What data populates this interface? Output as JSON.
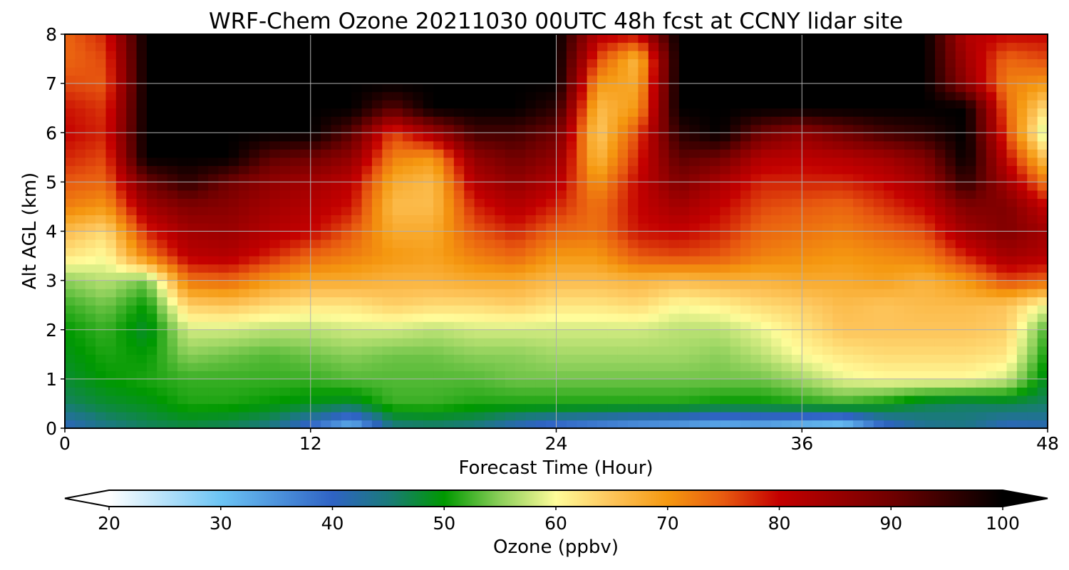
{
  "chart_data": {
    "type": "heatmap",
    "title": "WRF-Chem Ozone  20211030 00UTC 48h fcst at CCNY lidar site",
    "xlabel": "Forecast Time (Hour)",
    "ylabel": "Alt AGL (km)",
    "xlim": [
      0,
      48
    ],
    "ylim": [
      0,
      8
    ],
    "x_ticks": [
      "0",
      "12",
      "24",
      "36",
      "48"
    ],
    "y_ticks": [
      "0",
      "1",
      "2",
      "3",
      "4",
      "5",
      "6",
      "7",
      "8"
    ],
    "grid": true,
    "colorbar": {
      "label": "Ozone  (ppbv)",
      "range": [
        20,
        100
      ],
      "ticks": [
        "20",
        "30",
        "40",
        "50",
        "60",
        "70",
        "80",
        "90",
        "100"
      ],
      "extend": "both",
      "stops": [
        {
          "v": 20,
          "color": "#ffffff"
        },
        {
          "v": 30,
          "color": "#6cc4f4"
        },
        {
          "v": 40,
          "color": "#2f63c4"
        },
        {
          "v": 45,
          "color": "#1a7a7a"
        },
        {
          "v": 50,
          "color": "#009900"
        },
        {
          "v": 55,
          "color": "#8ccf5a"
        },
        {
          "v": 60,
          "color": "#fffc9a"
        },
        {
          "v": 65,
          "color": "#fdc45a"
        },
        {
          "v": 70,
          "color": "#f59810"
        },
        {
          "v": 75,
          "color": "#e85a10"
        },
        {
          "v": 80,
          "color": "#c40000"
        },
        {
          "v": 90,
          "color": "#700000"
        },
        {
          "v": 100,
          "color": "#000000"
        }
      ]
    },
    "field": {
      "x_hours": [
        0,
        2,
        4,
        6,
        8,
        10,
        12,
        14,
        16,
        18,
        20,
        22,
        24,
        26,
        28,
        30,
        32,
        34,
        36,
        38,
        40,
        42,
        44,
        46,
        48
      ],
      "z_km": [
        0,
        0.5,
        1,
        1.5,
        2,
        2.5,
        3,
        3.5,
        4,
        4.5,
        5,
        5.5,
        6,
        6.5,
        7,
        7.5,
        8
      ],
      "ozone_ppbv_rows": [
        [
          40,
          44,
          46,
          47,
          46,
          44,
          38,
          30,
          44,
          45,
          44,
          40,
          37,
          35,
          33,
          32,
          30,
          31,
          29,
          27,
          38,
          43,
          44,
          40,
          41
        ],
        [
          46,
          48,
          49,
          51,
          51,
          50,
          49,
          48,
          52,
          52,
          51,
          51,
          51,
          51,
          51,
          51,
          50,
          50,
          51,
          52,
          50,
          47,
          46,
          47,
          46
        ],
        [
          48,
          50,
          51,
          52,
          52,
          52,
          52,
          53,
          53,
          53,
          53,
          54,
          54,
          54,
          54,
          54,
          54,
          54,
          56,
          59,
          60,
          60,
          60,
          58,
          48
        ],
        [
          49,
          51,
          50,
          55,
          54,
          53,
          54,
          55,
          54,
          54,
          55,
          55,
          56,
          56,
          56,
          56,
          55,
          57,
          60,
          62,
          63,
          63,
          63,
          62,
          50
        ],
        [
          50,
          52,
          48,
          58,
          58,
          57,
          57,
          58,
          58,
          57,
          58,
          58,
          58,
          58,
          58,
          57,
          57,
          59,
          62,
          65,
          65,
          65,
          65,
          64,
          52
        ],
        [
          52,
          54,
          50,
          64,
          65,
          63,
          62,
          62,
          64,
          63,
          63,
          64,
          62,
          62,
          63,
          60,
          61,
          63,
          64,
          66,
          65,
          66,
          66,
          65,
          59
        ],
        [
          55,
          57,
          54,
          73,
          74,
          70,
          68,
          68,
          67,
          67,
          68,
          68,
          66,
          66,
          67,
          66,
          67,
          67,
          68,
          68,
          69,
          67,
          70,
          76,
          74
        ],
        [
          62,
          60,
          72,
          81,
          82,
          78,
          74,
          72,
          70,
          69,
          72,
          74,
          70,
          70,
          75,
          76,
          75,
          72,
          71,
          70,
          71,
          72,
          78,
          84,
          82
        ],
        [
          66,
          63,
          78,
          84,
          85,
          82,
          80,
          75,
          68,
          68,
          75,
          78,
          74,
          73,
          79,
          80,
          78,
          74,
          73,
          72,
          74,
          76,
          84,
          88,
          84
        ],
        [
          72,
          70,
          84,
          88,
          87,
          84,
          82,
          79,
          66,
          66,
          78,
          82,
          78,
          73,
          80,
          84,
          80,
          76,
          75,
          74,
          77,
          80,
          88,
          88,
          80
        ],
        [
          75,
          74,
          90,
          96,
          90,
          86,
          84,
          81,
          68,
          66,
          82,
          86,
          82,
          70,
          80,
          88,
          83,
          78,
          78,
          78,
          80,
          84,
          96,
          84,
          72
        ],
        [
          78,
          76,
          100,
          100,
          100,
          92,
          90,
          86,
          72,
          70,
          86,
          90,
          86,
          66,
          78,
          92,
          90,
          82,
          81,
          82,
          84,
          88,
          100,
          80,
          64
        ],
        [
          80,
          78,
          100,
          100,
          100,
          100,
          100,
          92,
          76,
          84,
          94,
          94,
          90,
          64,
          76,
          96,
          100,
          90,
          86,
          90,
          94,
          96,
          100,
          76,
          56
        ],
        [
          79,
          77,
          100,
          100,
          100,
          100,
          100,
          100,
          92,
          100,
          100,
          100,
          96,
          66,
          70,
          100,
          100,
          100,
          100,
          100,
          100,
          100,
          100,
          74,
          62
        ],
        [
          76,
          75,
          100,
          100,
          100,
          100,
          100,
          100,
          100,
          100,
          100,
          100,
          100,
          70,
          68,
          100,
          100,
          100,
          100,
          100,
          100,
          100,
          86,
          72,
          70
        ],
        [
          74,
          76,
          100,
          100,
          100,
          100,
          100,
          100,
          100,
          100,
          100,
          100,
          100,
          76,
          66,
          100,
          100,
          100,
          100,
          100,
          100,
          100,
          84,
          74,
          76
        ],
        [
          74,
          78,
          100,
          100,
          100,
          100,
          100,
          100,
          100,
          100,
          100,
          100,
          100,
          82,
          80,
          100,
          100,
          100,
          100,
          100,
          100,
          100,
          82,
          80,
          80
        ]
      ]
    }
  }
}
